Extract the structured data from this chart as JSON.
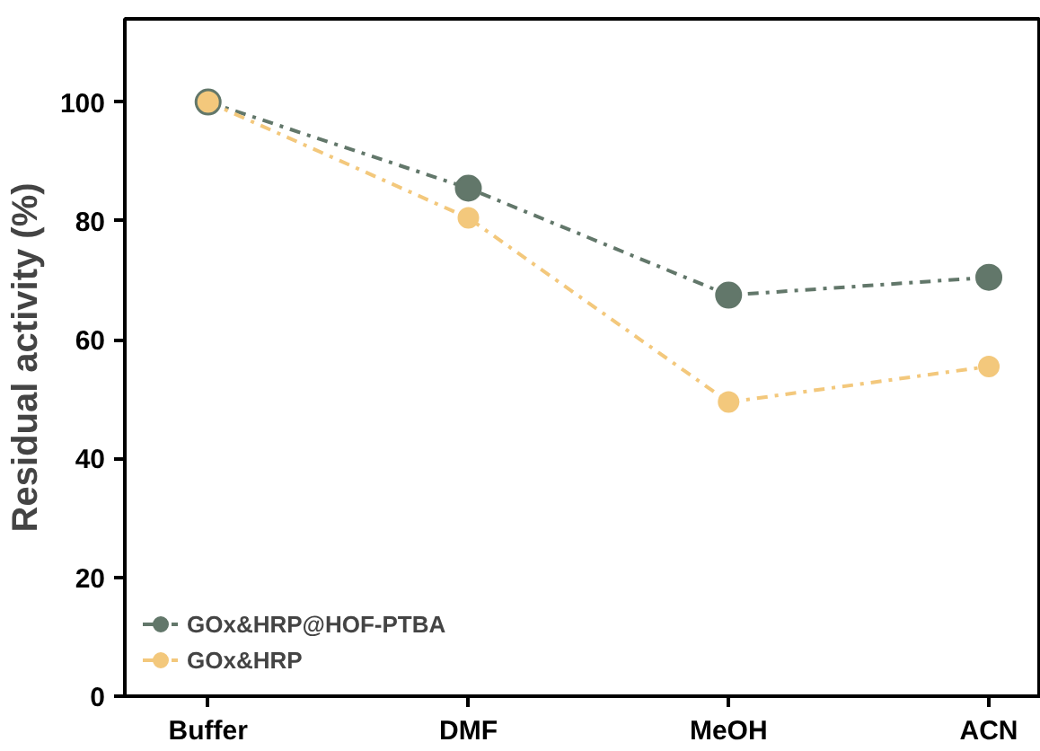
{
  "chart_data": {
    "type": "line",
    "ylabel": "Residual activity (%)",
    "categories": [
      "Buffer",
      "DMF",
      "MeOH",
      "ACN"
    ],
    "series": [
      {
        "name": "GOx&HRP@HOF-PTBA",
        "color": "#62776a",
        "values": [
          100,
          85.5,
          67.5,
          70.5
        ]
      },
      {
        "name": "GOx&HRP",
        "color": "#f3c87c",
        "values": [
          100,
          80.5,
          49.5,
          55.5
        ]
      }
    ],
    "ylim": [
      0,
      114
    ],
    "yticks": [
      0,
      20,
      40,
      60,
      80,
      100
    ],
    "grid": false,
    "legend": "bottom left",
    "marker": "circle",
    "line_style": "dashed"
  }
}
